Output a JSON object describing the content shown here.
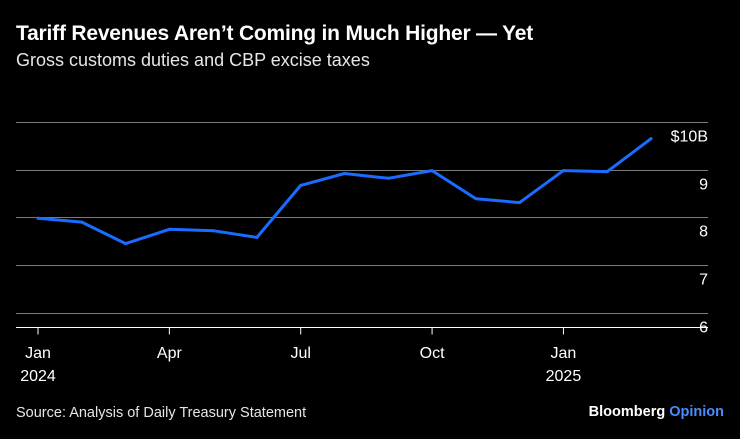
{
  "header": {
    "title": "Tariff Revenues Aren’t Coming in Much Higher — Yet",
    "subtitle": "Gross customs duties and CBP excise taxes"
  },
  "footer": {
    "source": "Source: Analysis of Daily Treasury Statement",
    "brand_main": "Bloomberg",
    "brand_accent": "Opinion"
  },
  "colors": {
    "background": "#000000",
    "line": "#1a6cff",
    "grid": "#7a7a7a",
    "text": "#ffffff",
    "accent": "#4a8cff"
  },
  "chart_data": {
    "type": "line",
    "title": "Tariff Revenues Aren’t Coming in Much Higher — Yet",
    "subtitle": "Gross customs duties and CBP excise taxes",
    "x": [
      "2024-01",
      "2024-02",
      "2024-03",
      "2024-04",
      "2024-05",
      "2024-06",
      "2024-07",
      "2024-08",
      "2024-09",
      "2024-10",
      "2024-11",
      "2024-12",
      "2025-01",
      "2025-02",
      "2025-03"
    ],
    "series": [
      {
        "values": [
          7.98,
          7.9,
          7.45,
          7.75,
          7.72,
          7.58,
          8.67,
          8.92,
          8.82,
          8.98,
          8.39,
          8.31,
          8.98,
          8.96,
          9.65
        ]
      }
    ],
    "ylim": [
      5.7,
      10
    ],
    "y_ticks": [
      6,
      7,
      8,
      9,
      10
    ],
    "y_tick_labels": [
      "6",
      "7",
      "8",
      "9",
      "$10B"
    ],
    "x_ticks": [
      "2024-01",
      "2024-04",
      "2024-07",
      "2024-10",
      "2025-01"
    ],
    "x_tick_labels": [
      [
        "Jan",
        "2024"
      ],
      [
        "Apr",
        ""
      ],
      [
        "Jul",
        ""
      ],
      [
        "Oct",
        ""
      ],
      [
        "Jan",
        "2025"
      ]
    ],
    "y_axis_position": "right",
    "grid": true,
    "legend": "none"
  }
}
